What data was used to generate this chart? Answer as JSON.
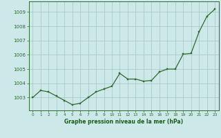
{
  "x": [
    0,
    1,
    2,
    3,
    4,
    5,
    6,
    7,
    8,
    9,
    10,
    11,
    12,
    13,
    14,
    15,
    16,
    17,
    18,
    19,
    20,
    21,
    22,
    23
  ],
  "y": [
    1003.0,
    1003.5,
    1003.4,
    1003.1,
    1002.8,
    1002.5,
    1002.6,
    1003.0,
    1003.4,
    1003.6,
    1003.8,
    1004.7,
    1004.3,
    1004.3,
    1004.15,
    1004.2,
    1004.8,
    1005.0,
    1005.0,
    1006.05,
    1006.1,
    1007.6,
    1008.7,
    1009.2
  ],
  "line_color": "#2d6a2d",
  "marker_color": "#2d6a2d",
  "bg_color": "#cce8e8",
  "grid_color": "#aacaca",
  "xlabel": "Graphe pression niveau de la mer (hPa)",
  "xlabel_color": "#1a5c1a",
  "ylabel_ticks": [
    1003,
    1004,
    1005,
    1006,
    1007,
    1008,
    1009
  ],
  "ylim": [
    1002.1,
    1009.75
  ],
  "xlim": [
    -0.5,
    23.5
  ],
  "xtick_labels": [
    "0",
    "1",
    "2",
    "3",
    "4",
    "5",
    "6",
    "7",
    "8",
    "9",
    "10",
    "11",
    "12",
    "13",
    "14",
    "15",
    "16",
    "17",
    "18",
    "19",
    "20",
    "21",
    "22",
    "23"
  ],
  "axis_color": "#2d6a2d"
}
